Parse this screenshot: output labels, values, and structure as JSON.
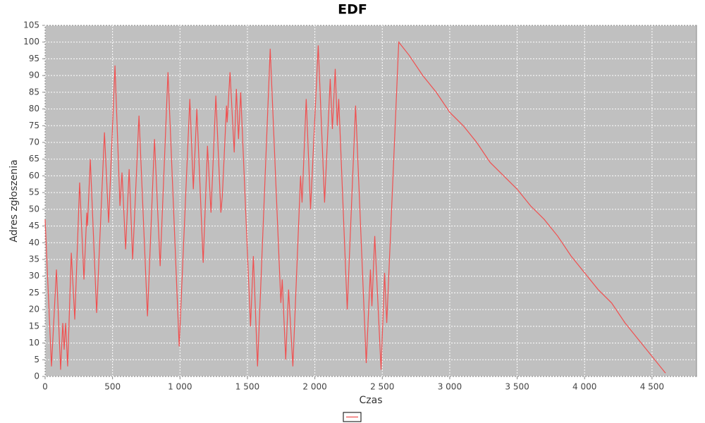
{
  "chart_data": {
    "type": "line",
    "title": "EDF",
    "x_label": "Czas",
    "y_label": "Adres zgłoszenia",
    "xlim": [
      0,
      4830
    ],
    "ylim": [
      0,
      105
    ],
    "xticks": [
      0,
      500,
      {
        "value": 1000,
        "label": "1 000"
      },
      {
        "value": 1500,
        "label": "1 500"
      },
      {
        "value": 2000,
        "label": "2 000"
      },
      {
        "value": 2500,
        "label": "2 500"
      },
      {
        "value": 3000,
        "label": "3 000"
      },
      {
        "value": 3500,
        "label": "3 500"
      },
      {
        "value": 4000,
        "label": "4 000"
      },
      {
        "value": 4500,
        "label": "4 500"
      }
    ],
    "yticks": [
      0,
      5,
      10,
      15,
      20,
      25,
      30,
      35,
      40,
      45,
      50,
      55,
      60,
      65,
      70,
      75,
      80,
      85,
      90,
      95,
      100,
      105
    ],
    "grid": true,
    "background": "#c0c0c0",
    "series": [
      {
        "color": "#f05050",
        "x": [
          0,
          47,
          84,
          115,
          131,
          141,
          152,
          167,
          194,
          220,
          256,
          288,
          309,
          314,
          335,
          382,
          440,
          471,
          518,
          555,
          570,
          597,
          623,
          649,
          696,
          759,
          811,
          853,
          911,
          994,
          1073,
          1099,
          1125,
          1172,
          1204,
          1230,
          1266,
          1303,
          1314,
          1345,
          1350,
          1371,
          1402,
          1418,
          1434,
          1450,
          1523,
          1544,
          1575,
          1669,
          1748,
          1758,
          1784,
          1805,
          1837,
          1894,
          1905,
          1936,
          1968,
          2025,
          2072,
          2114,
          2130,
          2151,
          2166,
          2177,
          2240,
          2302,
          2381,
          2412,
          2423,
          2444,
          2491,
          2517,
          2533,
          2622,
          2700,
          2800,
          2900,
          3000,
          3100,
          3200,
          3300,
          3400,
          3500,
          3600,
          3700,
          3800,
          3900,
          4000,
          4100,
          4200,
          4300,
          4400,
          4500,
          4600
        ],
        "values": [
          47,
          3,
          32,
          2,
          16,
          8,
          16,
          3,
          37,
          17,
          58,
          29,
          49,
          45,
          65,
          19,
          73,
          46,
          93,
          51,
          61,
          38,
          62,
          35,
          78,
          18,
          71,
          33,
          91,
          9,
          83,
          56,
          80,
          34,
          69,
          49,
          84,
          49,
          54,
          81,
          76,
          91,
          67,
          86,
          71,
          85,
          15,
          36,
          3,
          98,
          22,
          29,
          5,
          26,
          3,
          60,
          52,
          83,
          50,
          99,
          52,
          89,
          74,
          92,
          75,
          83,
          20,
          81,
          4,
          32,
          21,
          42,
          2,
          31,
          16,
          100,
          96,
          90,
          85,
          79,
          75,
          70,
          64,
          60,
          56,
          51,
          47,
          42,
          36,
          31,
          26,
          22,
          16,
          11,
          6,
          1
        ]
      }
    ]
  }
}
